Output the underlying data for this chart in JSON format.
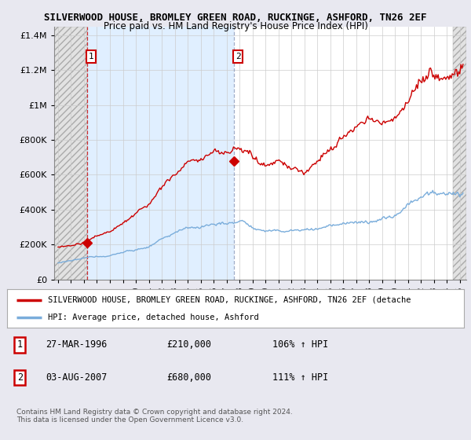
{
  "title1": "SILVERWOOD HOUSE, BROMLEY GREEN ROAD, RUCKINGE, ASHFORD, TN26 2EF",
  "title2": "Price paid vs. HM Land Registry's House Price Index (HPI)",
  "legend_label1": "SILVERWOOD HOUSE, BROMLEY GREEN ROAD, RUCKINGE, ASHFORD, TN26 2EF (detache",
  "legend_label2": "HPI: Average price, detached house, Ashford",
  "footnote": "Contains HM Land Registry data © Crown copyright and database right 2024.\nThis data is licensed under the Open Government Licence v3.0.",
  "sale1_date": "27-MAR-1996",
  "sale1_price": "£210,000",
  "sale1_hpi": "106% ↑ HPI",
  "sale2_date": "03-AUG-2007",
  "sale2_price": "£680,000",
  "sale2_hpi": "111% ↑ HPI",
  "price_color": "#cc0000",
  "hpi_color": "#7aaddb",
  "hpi_shade_color": "#ddeeff",
  "background_color": "#e8e8f0",
  "plot_bg_color": "#ffffff",
  "ylim": [
    0,
    1450000
  ],
  "yticks": [
    0,
    200000,
    400000,
    600000,
    800000,
    1000000,
    1200000,
    1400000
  ],
  "xlim_start": 1993.7,
  "xlim_end": 2025.5,
  "sale1_x": 1996.23,
  "sale1_y": 210000,
  "sale2_x": 2007.58,
  "sale2_y": 680000
}
